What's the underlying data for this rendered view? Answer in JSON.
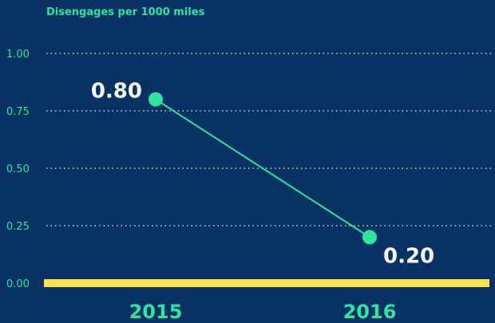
{
  "chart_data": {
    "type": "line",
    "title": "Disengages per 1000 miles",
    "xlabel": "",
    "ylabel": "",
    "categories": [
      "2015",
      "2016"
    ],
    "values": [
      0.8,
      0.2
    ],
    "data_labels": [
      "0.80",
      "0.20"
    ],
    "ylim": [
      0,
      1.0
    ],
    "yticks": [
      {
        "value": 0.0,
        "label": "0.00"
      },
      {
        "value": 0.25,
        "label": "0.25"
      },
      {
        "value": 0.5,
        "label": "0.50"
      },
      {
        "value": 0.75,
        "label": "0.75"
      },
      {
        "value": 1.0,
        "label": "1.00"
      }
    ],
    "grid": true,
    "colors": {
      "background": "#073263",
      "line": "#2ee59d",
      "text_accent": "#2ee59d",
      "data_label": "#ffffff",
      "baseline": "#ffe14d",
      "grid": "#d9d6b0"
    }
  }
}
